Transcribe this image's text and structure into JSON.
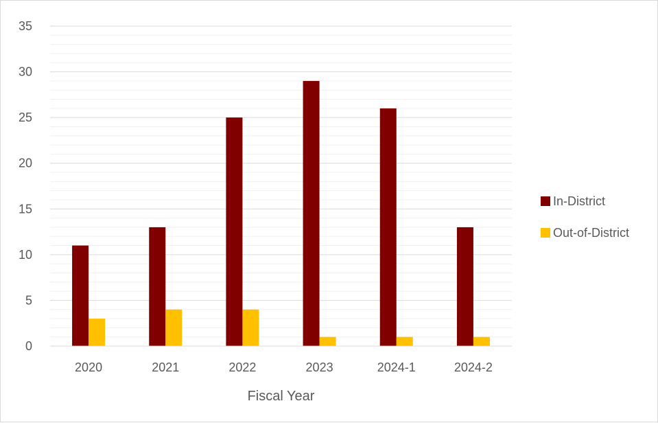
{
  "chart_data": {
    "type": "bar",
    "title": "",
    "xlabel": "Fiscal Year",
    "ylabel": "",
    "categories": [
      "2020",
      "2021",
      "2022",
      "2023",
      "2024-1",
      "2024-2"
    ],
    "series": [
      {
        "name": "In-District",
        "values": [
          11,
          13,
          25,
          29,
          26,
          13
        ],
        "color": "#800000"
      },
      {
        "name": "Out-of-District",
        "values": [
          3,
          4,
          4,
          1,
          1,
          1
        ],
        "color": "#ffc000"
      }
    ],
    "ylim": [
      0,
      35
    ],
    "yticks": [
      0,
      5,
      10,
      15,
      20,
      25,
      30,
      35
    ],
    "minor_gridlines": true,
    "legend_position": "right"
  }
}
